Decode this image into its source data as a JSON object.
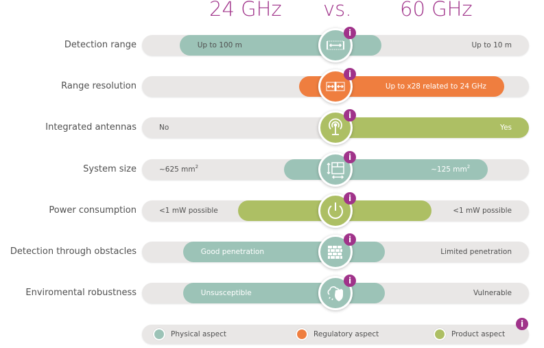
{
  "header": {
    "left": "24 GHz",
    "vs": "vs.",
    "right": "60 GHz"
  },
  "colors": {
    "physical": "#9cc3b7",
    "regulatory": "#ef7e3f",
    "product": "#adbf64",
    "track": "#e9e7e6",
    "info": "#a0338a",
    "header": "#a0338a"
  },
  "rows": [
    {
      "label": "Detection range",
      "aspect": "physical",
      "icon": "distance-arrow-icon",
      "left_text": "Up to 100 m",
      "right_text": "Up to 10 m",
      "left_sup": "",
      "right_sup": "",
      "left_on_fill": true,
      "right_on_fill": false,
      "fill_from": 0.097,
      "fill_to": 0.619
    },
    {
      "label": "Range resolution",
      "aspect": "regulatory",
      "icon": "double-distance-icon",
      "left_text": "",
      "right_text": "Up to x28 related to 24 GHz",
      "left_sup": "",
      "right_sup": "",
      "left_on_fill": false,
      "right_on_fill": true,
      "fill_from": 0.406,
      "fill_to": 0.936
    },
    {
      "label": "Integrated antennas",
      "aspect": "product",
      "icon": "antenna-icon",
      "left_text": "No",
      "right_text": "Yes",
      "left_sup": "",
      "right_sup": "",
      "left_on_fill": false,
      "right_on_fill": true,
      "fill_from": 0.5,
      "fill_to": 1.0
    },
    {
      "label": "System size",
      "aspect": "physical",
      "icon": "size-layout-icon",
      "left_text": "~625 mm",
      "right_text": "~125 mm",
      "left_sup": "2",
      "right_sup": "2",
      "left_on_fill": false,
      "right_on_fill": true,
      "fill_from": 0.367,
      "fill_to": 0.894
    },
    {
      "label": "Power consumption",
      "aspect": "product",
      "icon": "power-icon",
      "left_text": "<1 mW possible",
      "right_text": "<1 mW possible",
      "left_sup": "",
      "right_sup": "",
      "left_on_fill": false,
      "right_on_fill": false,
      "fill_from": 0.248,
      "fill_to": 0.748
    },
    {
      "label": "Detection through obstacles",
      "aspect": "physical",
      "icon": "brick-wall-icon",
      "left_text": "Good penetration",
      "right_text": "Limited penetration",
      "left_sup": "",
      "right_sup": "",
      "left_on_fill": true,
      "right_on_fill": false,
      "fill_from": 0.106,
      "fill_to": 0.628
    },
    {
      "label": "Enviromental robustness",
      "aspect": "physical",
      "icon": "weather-shield-icon",
      "left_text": "Unsusceptible",
      "right_text": "Vulnerable",
      "left_sup": "",
      "right_sup": "",
      "left_on_fill": true,
      "right_on_fill": false,
      "fill_from": 0.106,
      "fill_to": 0.628
    }
  ],
  "info_glyph": "i",
  "legend": {
    "items": [
      {
        "label": "Physical aspect",
        "aspect": "physical"
      },
      {
        "label": "Regulatory aspect",
        "aspect": "regulatory"
      },
      {
        "label": "Product aspect",
        "aspect": "product"
      }
    ]
  }
}
